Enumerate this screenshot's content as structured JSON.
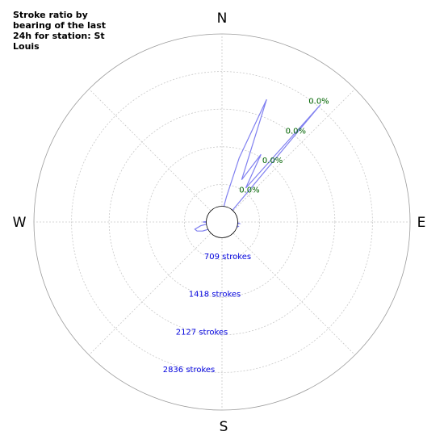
{
  "chart_data": {
    "type": "polar-line",
    "title": "Stroke ratio by bearing of the last 24h for station: St Louis",
    "directions": [
      "N",
      "E",
      "S",
      "W"
    ],
    "ratio_labels": [
      "0.0%",
      "0.0%",
      "0.0%",
      "0.0%"
    ],
    "stroke_labels": [
      "709 strokes",
      "1418 strokes",
      "2127 strokes",
      "2836 strokes"
    ],
    "radial_max_strokes": 3545,
    "series": [
      {
        "color": "#8080f0",
        "bearings": [
          0,
          5,
          10,
          15,
          20,
          25,
          30,
          35,
          40,
          45,
          50,
          55,
          60,
          65,
          70,
          75,
          80,
          85,
          90,
          95,
          100,
          105,
          110,
          115,
          120,
          125,
          130,
          135,
          140,
          145,
          150,
          155,
          160,
          165,
          170,
          175,
          180,
          185,
          190,
          195,
          200,
          205,
          210,
          215,
          220,
          225,
          230,
          235,
          240,
          245,
          250,
          255,
          260,
          265,
          270,
          275,
          280,
          285,
          290,
          295,
          300,
          305,
          310,
          315,
          320,
          325,
          330,
          335,
          340,
          345,
          350,
          355
        ],
        "strokes": [
          140,
          240,
          480,
          1250,
          2460,
          880,
          1470,
          780,
          2890,
          110,
          130,
          170,
          210,
          200,
          230,
          190,
          230,
          200,
          260,
          330,
          240,
          320,
          290,
          170,
          220,
          150,
          160,
          180,
          160,
          130,
          180,
          130,
          150,
          140,
          200,
          100,
          200,
          220,
          100,
          130,
          180,
          90,
          180,
          90,
          120,
          140,
          150,
          200,
          260,
          400,
          500,
          530,
          410,
          210,
          360,
          220,
          200,
          280,
          150,
          150,
          90,
          130,
          150,
          110,
          80,
          130,
          120,
          100,
          110,
          120,
          110,
          130
        ]
      }
    ]
  }
}
